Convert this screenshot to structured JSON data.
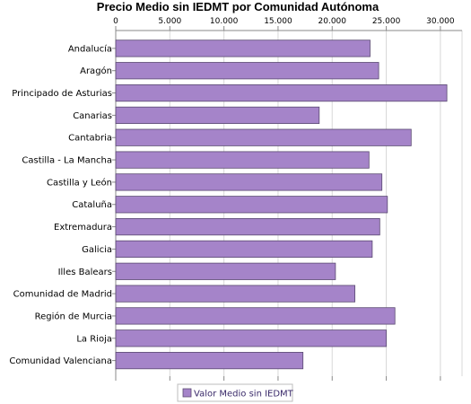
{
  "chart_data": {
    "type": "bar",
    "orientation": "horizontal",
    "title": "Precio Medio sin IEDMT por Comunidad Autónoma",
    "categories": [
      "Andalucía",
      "Aragón",
      "Principado de Asturias",
      "Canarias",
      "Cantabria",
      "Castilla - La Mancha",
      "Castilla y León",
      "Cataluña",
      "Extremadura",
      "Galicia",
      "Illes Balears",
      "Comunidad de Madrid",
      "Región de Murcia",
      "La Rioja",
      "Comunidad Valenciana"
    ],
    "series": [
      {
        "name": "Valor Medio sin IEDMT",
        "values": [
          23500,
          24300,
          30600,
          18800,
          27300,
          23400,
          24600,
          25100,
          24400,
          23700,
          20300,
          22100,
          25800,
          25000,
          17300
        ]
      }
    ],
    "xlim": [
      0,
      32000
    ],
    "xticks": [
      0,
      5000,
      10000,
      15000,
      20000,
      25000,
      30000
    ],
    "xtick_labels": [
      "0",
      "5.000",
      "10.000",
      "15.000",
      "20.000",
      "25.000",
      "30.000"
    ],
    "x_axis_position": "top",
    "grid": true,
    "legend": "bottom",
    "colors": {
      "bar_fill": "#a584c9",
      "bar_stroke": "#5a4a72",
      "grid": "#d8d8d8",
      "axis": "#888888"
    }
  }
}
